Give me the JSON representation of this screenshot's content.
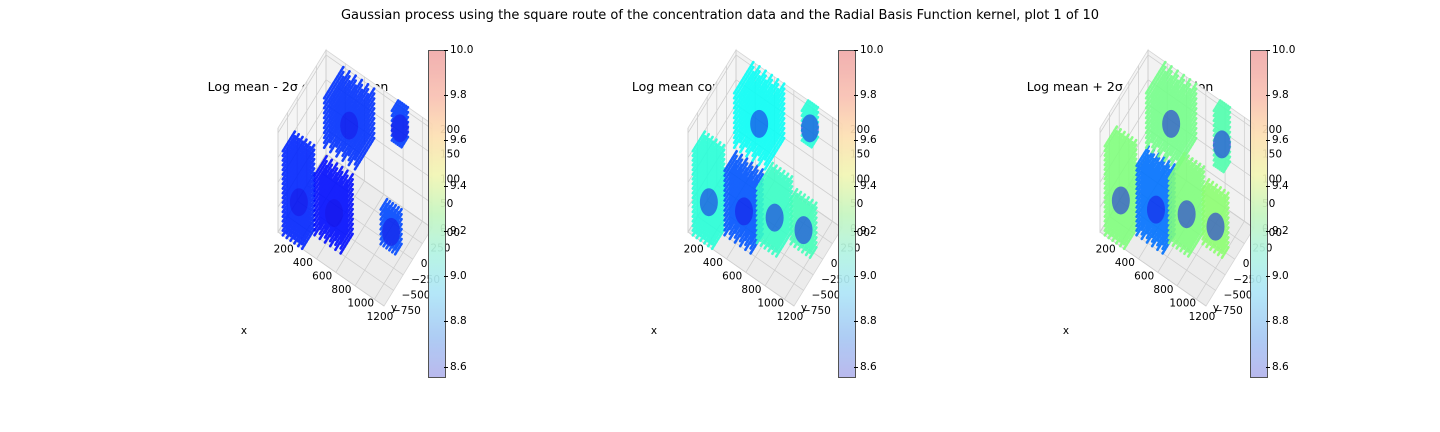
{
  "figure": {
    "suptitle": "Gaussian process using the square route of the concentration data and the Radial Basis Function kernel, plot 1 of 10"
  },
  "chart_data": [
    {
      "type": "scatter",
      "title": "Log mean - 2σ concentration",
      "xlabel": "x",
      "ylabel": "y",
      "zlabel": "",
      "xticks": [
        "200",
        "400",
        "600",
        "800",
        "1000",
        "1200"
      ],
      "yticks": [
        "−750",
        "−500",
        "−250",
        "0",
        "250",
        "500"
      ],
      "zticks": [
        "0",
        "50",
        "100",
        "150",
        "200"
      ],
      "xlim": [
        100,
        1200
      ],
      "ylim": [
        -900,
        600
      ],
      "zlim": [
        0,
        210
      ],
      "colorbar": {
        "min": 8.55,
        "max": 10.0,
        "ticks": [
          "8.6",
          "8.8",
          "9.0",
          "9.2",
          "9.4",
          "9.6",
          "9.8",
          "10.0"
        ],
        "cmap": "jet"
      },
      "clusters": [
        {
          "x": [
            150,
            350
          ],
          "y": [
            -900,
            -500
          ],
          "z": [
            0,
            170
          ],
          "value": 8.62
        },
        {
          "x": [
            380,
            650
          ],
          "y": [
            -600,
            -200
          ],
          "z": [
            0,
            120
          ],
          "value": 8.58
        },
        {
          "x": [
            280,
            600
          ],
          "y": [
            0,
            600
          ],
          "z": [
            100,
            200
          ],
          "value": 8.64
        },
        {
          "x": [
            850,
            950
          ],
          "y": [
            400,
            600
          ],
          "z": [
            150,
            210
          ],
          "value": 8.66
        },
        {
          "x": [
            900,
            1050
          ],
          "y": [
            -100,
            100
          ],
          "z": [
            0,
            70
          ],
          "value": 8.68
        }
      ]
    },
    {
      "type": "scatter",
      "title": "Log mean concentration",
      "xlabel": "x",
      "ylabel": "y",
      "zlabel": "",
      "xticks": [
        "200",
        "400",
        "600",
        "800",
        "1000",
        "1200"
      ],
      "yticks": [
        "−750",
        "−500",
        "−250",
        "0",
        "250",
        "500"
      ],
      "zticks": [
        "0",
        "50",
        "100",
        "150",
        "200"
      ],
      "xlim": [
        100,
        1200
      ],
      "ylim": [
        -900,
        600
      ],
      "zlim": [
        0,
        210
      ],
      "colorbar": {
        "min": 8.55,
        "max": 10.0,
        "ticks": [
          "8.6",
          "8.8",
          "9.0",
          "9.2",
          "9.4",
          "9.6",
          "9.8",
          "10.0"
        ],
        "cmap": "jet"
      },
      "clusters": [
        {
          "x": [
            150,
            350
          ],
          "y": [
            -900,
            -500
          ],
          "z": [
            0,
            170
          ],
          "value": 9.05
        },
        {
          "x": [
            380,
            650
          ],
          "y": [
            -600,
            -200
          ],
          "z": [
            0,
            130
          ],
          "value": 8.7
        },
        {
          "x": [
            280,
            600
          ],
          "y": [
            0,
            600
          ],
          "z": [
            100,
            210
          ],
          "value": 9.0
        },
        {
          "x": [
            850,
            950
          ],
          "y": [
            400,
            600
          ],
          "z": [
            150,
            210
          ],
          "value": 9.05
        },
        {
          "x": [
            650,
            850
          ],
          "y": [
            -400,
            100
          ],
          "z": [
            0,
            110
          ],
          "value": 9.08
        },
        {
          "x": [
            900,
            1100
          ],
          "y": [
            -100,
            100
          ],
          "z": [
            0,
            90
          ],
          "value": 9.1
        }
      ]
    },
    {
      "type": "scatter",
      "title": "Log mean + 2σ concentration",
      "xlabel": "x",
      "ylabel": "y",
      "zlabel": "",
      "xticks": [
        "200",
        "400",
        "600",
        "800",
        "1000",
        "1200"
      ],
      "yticks": [
        "−750",
        "−500",
        "−250",
        "0",
        "250",
        "500"
      ],
      "zticks": [
        "0",
        "50",
        "100",
        "150",
        "200"
      ],
      "xlim": [
        100,
        1200
      ],
      "ylim": [
        -900,
        600
      ],
      "zlim": [
        0,
        210
      ],
      "colorbar": {
        "min": 8.55,
        "max": 10.0,
        "ticks": [
          "8.6",
          "8.8",
          "9.0",
          "9.2",
          "9.4",
          "9.6",
          "9.8",
          "10.0"
        ],
        "cmap": "jet"
      },
      "clusters": [
        {
          "x": [
            150,
            350
          ],
          "y": [
            -900,
            -500
          ],
          "z": [
            0,
            180
          ],
          "value": 9.2
        },
        {
          "x": [
            380,
            650
          ],
          "y": [
            -600,
            -200
          ],
          "z": [
            0,
            140
          ],
          "value": 8.75
        },
        {
          "x": [
            280,
            600
          ],
          "y": [
            0,
            600
          ],
          "z": [
            100,
            210
          ],
          "value": 9.18
        },
        {
          "x": [
            850,
            950
          ],
          "y": [
            400,
            600
          ],
          "z": [
            100,
            210
          ],
          "value": 9.12
        },
        {
          "x": [
            650,
            850
          ],
          "y": [
            -400,
            100
          ],
          "z": [
            0,
            130
          ],
          "value": 9.2
        },
        {
          "x": [
            900,
            1100
          ],
          "y": [
            -100,
            100
          ],
          "z": [
            0,
            110
          ],
          "value": 9.22
        }
      ]
    }
  ]
}
